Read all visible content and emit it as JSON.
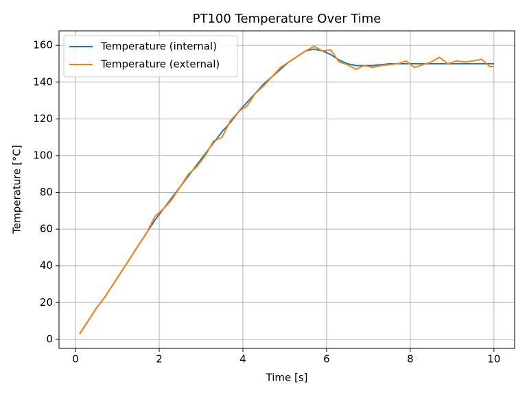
{
  "chart_data": {
    "type": "line",
    "title": "PT100 Temperature Over Time",
    "x_label": "Time [s]",
    "y_label": "Temperature [°C]",
    "x": [
      0.1,
      0.3,
      0.5,
      0.7,
      0.9,
      1.1,
      1.3,
      1.5,
      1.7,
      1.9,
      2.1,
      2.3,
      2.5,
      2.7,
      2.9,
      3.1,
      3.3,
      3.5,
      3.7,
      3.9,
      4.1,
      4.3,
      4.5,
      4.7,
      4.9,
      5.1,
      5.3,
      5.5,
      5.7,
      5.9,
      6.1,
      6.3,
      6.5,
      6.7,
      6.9,
      7.1,
      7.3,
      7.5,
      7.7,
      7.9,
      8.1,
      8.3,
      8.5,
      8.7,
      8.9,
      9.1,
      9.3,
      9.5,
      9.7,
      9.9,
      10
    ],
    "series": [
      {
        "name": "Temperature (internal)",
        "color": "#1f77b4",
        "values": [
          3,
          10,
          17,
          23,
          30,
          37,
          44,
          51,
          58,
          65,
          71,
          77,
          83,
          89,
          95,
          101,
          107,
          113,
          118,
          124,
          129,
          134,
          139,
          143,
          147,
          151,
          154,
          157,
          158,
          157,
          155,
          152,
          150,
          149,
          149,
          149,
          149.5,
          150,
          150,
          150,
          150,
          150,
          150,
          150,
          150,
          150,
          150,
          150,
          150,
          150,
          150
        ]
      },
      {
        "name": "Temperature (external)",
        "color": "#ff7f0e",
        "values": [
          3,
          10,
          17,
          23,
          30,
          37,
          44,
          51,
          58,
          67,
          71,
          76,
          83,
          90,
          94,
          100,
          108,
          110,
          119,
          124,
          127,
          134,
          138,
          143,
          148,
          151,
          154,
          157,
          159.5,
          157,
          157.5,
          151,
          149.5,
          147,
          149,
          148,
          149,
          149.5,
          150,
          151.5,
          148,
          149.5,
          151,
          153.5,
          150,
          151.5,
          151,
          151.5,
          152.5,
          148.5,
          148.5
        ]
      }
    ],
    "xlim": [
      -0.395,
      10.495
    ],
    "xticks": [
      0,
      2,
      4,
      6,
      8,
      10
    ],
    "ylim": [
      -4.9,
      167.9
    ],
    "yticks": [
      0,
      20,
      40,
      60,
      80,
      100,
      120,
      140,
      160
    ],
    "grid": true,
    "legend": "upper-left"
  }
}
